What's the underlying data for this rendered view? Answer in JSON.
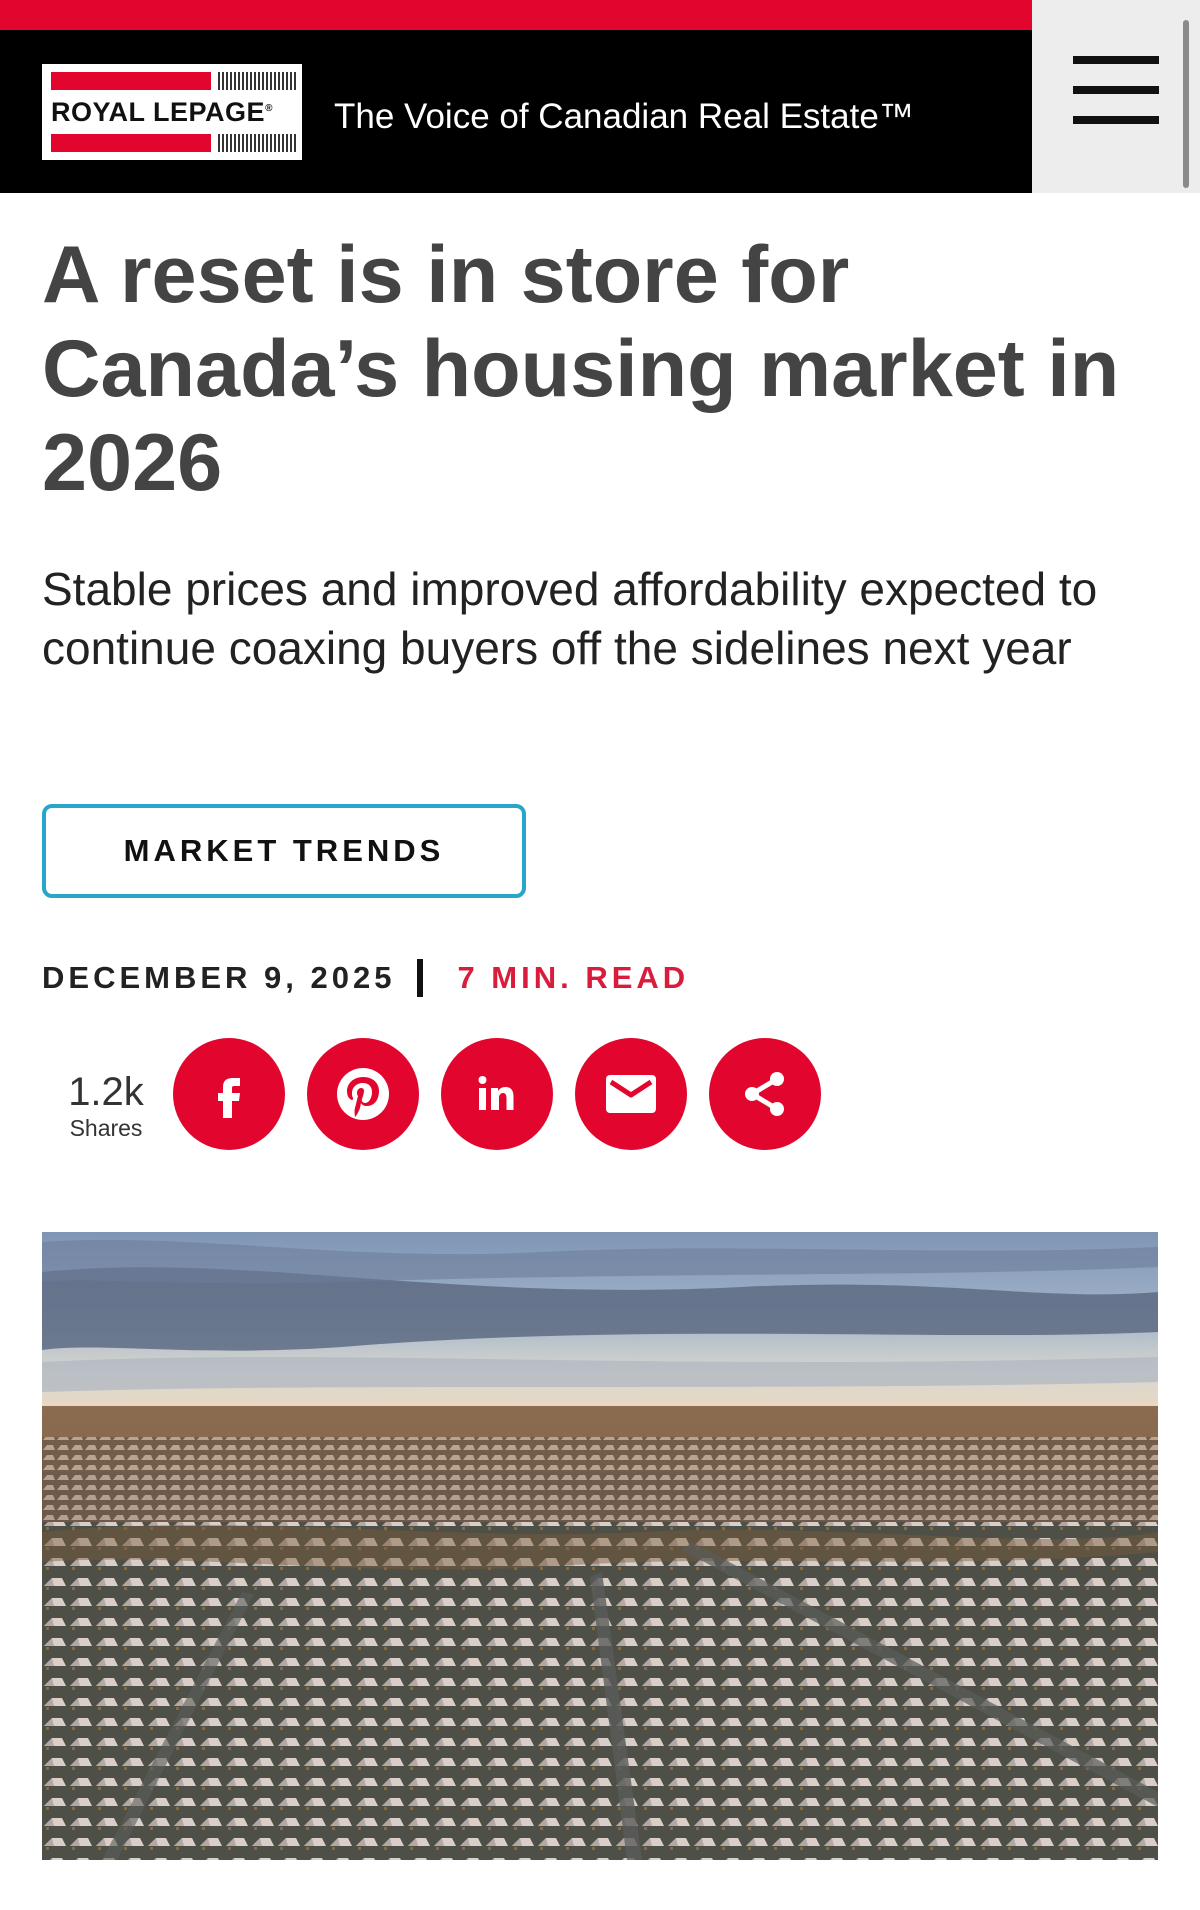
{
  "header": {
    "brand_name": "ROYAL LEPAGE",
    "tagline": "The Voice of Canadian Real Estate™",
    "menu_icon": "hamburger-menu-icon",
    "colors": {
      "brand_red": "#e2062e",
      "header_black": "#000000",
      "menu_bg": "#ededed"
    }
  },
  "article": {
    "title": "A reset is in store for Canada’s housing market in 2026",
    "subtitle": "Stable prices and improved affordability expected to continue coaxing buyers off the sidelines next year",
    "category_label": "MARKET TRENDS",
    "date": "DECEMBER 9, 2025",
    "read_time": "7 MIN. READ"
  },
  "share": {
    "count": "1.2k",
    "label": "Shares",
    "buttons": [
      {
        "name": "facebook",
        "icon": "facebook-icon"
      },
      {
        "name": "pinterest",
        "icon": "pinterest-icon"
      },
      {
        "name": "linkedin",
        "icon": "linkedin-icon"
      },
      {
        "name": "email",
        "icon": "email-icon"
      },
      {
        "name": "share",
        "icon": "share-icon"
      }
    ]
  },
  "hero_image": {
    "subject": "aerial-suburb-photo"
  },
  "colors": {
    "accent_red": "#e2062e",
    "tag_border": "#27a6c9",
    "read_time_red": "#d91c3c"
  }
}
